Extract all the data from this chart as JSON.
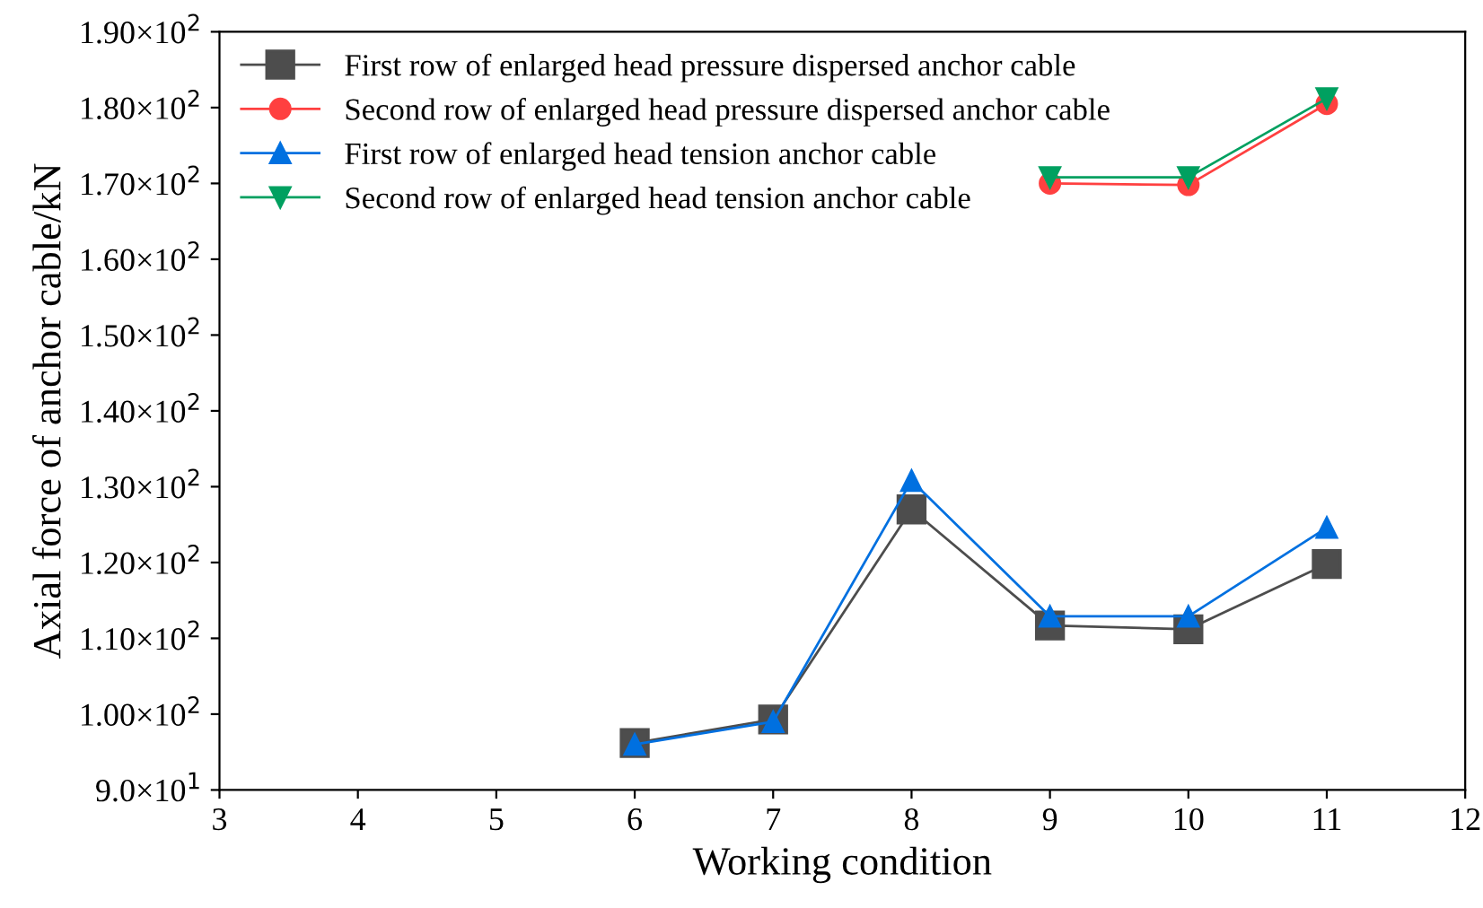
{
  "chart_data": {
    "type": "line",
    "xlabel": "Working condition",
    "ylabel": "Axial force of anchor cable/kN",
    "xlim": [
      3,
      12
    ],
    "xticks": [
      3,
      4,
      5,
      6,
      7,
      8,
      9,
      10,
      11,
      12
    ],
    "ylim": [
      90,
      190
    ],
    "yticks": [
      {
        "value": 90,
        "label": "9.0×10$^{1}$"
      },
      {
        "value": 100,
        "label": "1.00×10$^{2}$"
      },
      {
        "value": 110,
        "label": "1.10×10$^{2}$"
      },
      {
        "value": 120,
        "label": "1.20×10$^{2}$"
      },
      {
        "value": 130,
        "label": "1.30×10$^{2}$"
      },
      {
        "value": 140,
        "label": "1.40×10$^{2}$"
      },
      {
        "value": 150,
        "label": "1.50×10$^{2}$"
      },
      {
        "value": 160,
        "label": "1.60×10$^{2}$"
      },
      {
        "value": 170,
        "label": "1.70×10$^{2}$"
      },
      {
        "value": 180,
        "label": "1.80×10$^{2}$"
      },
      {
        "value": 190,
        "label": "1.90×10$^{2}$"
      }
    ],
    "grid": false,
    "legend": "top left",
    "line_style": "solid",
    "series": [
      {
        "name": "First row of enlarged head pressure dispersed anchor cable",
        "color": "#4d4d4d",
        "marker": "square",
        "x": [
          6,
          7,
          8,
          9,
          10,
          11
        ],
        "values": [
          96.2,
          99.3,
          127.0,
          111.7,
          111.2,
          119.8
        ]
      },
      {
        "name": "Second row of enlarged head pressure dispersed anchor cable",
        "color": "#ff4040",
        "marker": "circle",
        "x": [
          9,
          10,
          11
        ],
        "values": [
          170.0,
          169.8,
          180.5
        ]
      },
      {
        "name": "First row of enlarged head tension anchor cable",
        "color": "#0070e0",
        "marker": "triangle",
        "x": [
          6,
          7,
          8,
          9,
          10,
          11
        ],
        "values": [
          96.0,
          99.0,
          130.8,
          112.9,
          112.9,
          124.6
        ]
      },
      {
        "name": "Second row of enlarged head tension anchor cable",
        "color": "#00a060",
        "marker": "triangle_down",
        "x": [
          9,
          10,
          11
        ],
        "values": [
          170.8,
          170.8,
          181.2
        ]
      }
    ]
  }
}
